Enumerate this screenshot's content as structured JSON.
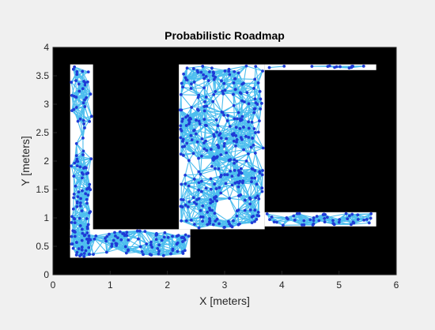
{
  "chart_data": {
    "type": "scatter",
    "title": "Probabilistic Roadmap",
    "xlabel": "X [meters]",
    "ylabel": "Y [meters]",
    "xlim": [
      0,
      6
    ],
    "ylim": [
      0,
      4
    ],
    "xticks": [
      "0",
      "1",
      "2",
      "3",
      "4",
      "5",
      "6"
    ],
    "yticks": [
      "0",
      "0.5",
      "1",
      "1.5",
      "2",
      "2.5",
      "3",
      "3.5",
      "4"
    ],
    "grid": false,
    "legend": "none",
    "colors": {
      "obstacle": "#000000",
      "free_space": "#ffffff",
      "roadmap_edges": "#4dbeee",
      "nodes": "#1f3bd6",
      "figure_background": "#f0f0f0"
    },
    "free_space_regions": [
      {
        "x": [
          0.3,
          0.7
        ],
        "y": [
          0.3,
          3.7
        ]
      },
      {
        "x": [
          0.3,
          2.4
        ],
        "y": [
          0.3,
          0.8
        ]
      },
      {
        "x": [
          2.2,
          3.7
        ],
        "y": [
          0.8,
          3.7
        ]
      },
      {
        "x": [
          3.7,
          5.65
        ],
        "y": [
          0.85,
          1.1
        ]
      },
      {
        "x": [
          3.7,
          5.65
        ],
        "y": [
          3.6,
          3.7
        ]
      }
    ],
    "series": [
      {
        "kind": "nodes",
        "sampled_node_count": 600
      }
    ]
  }
}
